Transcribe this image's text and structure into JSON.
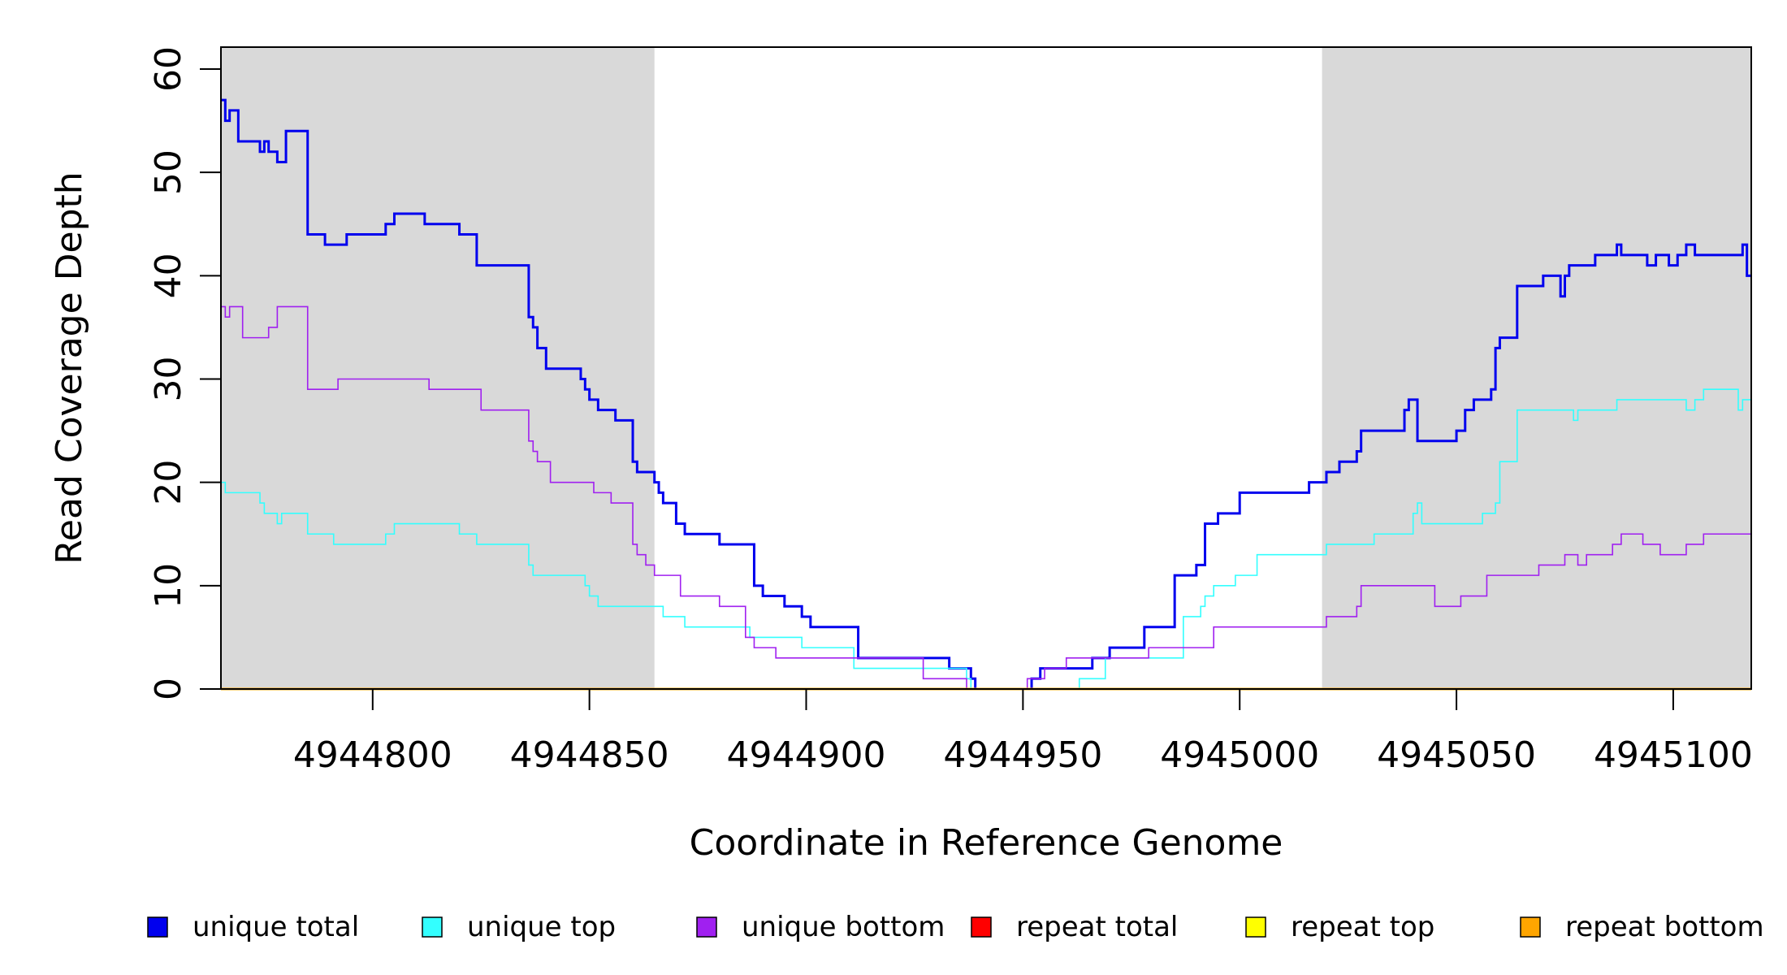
{
  "chart_data": {
    "type": "line",
    "xlabel": "Coordinate in Reference Genome",
    "ylabel": "Read Coverage Depth",
    "xlim": [
      4944765,
      4945118
    ],
    "ylim": [
      0,
      62
    ],
    "x_ticks": [
      4944800,
      4944850,
      4944900,
      4944950,
      4945000,
      4945050,
      4945100
    ],
    "x_tick_labels": [
      "4944800",
      "4944850",
      "4944900",
      "4944950",
      "4945000",
      "4945050",
      "4945100"
    ],
    "y_ticks": [
      0,
      10,
      20,
      30,
      40,
      50,
      60
    ],
    "y_tick_labels": [
      "0",
      "10",
      "20",
      "30",
      "40",
      "50",
      "60"
    ],
    "shaded_regions": [
      [
        4944765,
        4944865
      ],
      [
        4945019,
        4945118
      ]
    ],
    "shade_color": "#d9d9d9",
    "legend_position": "bottom",
    "series": [
      {
        "name": "unique total",
        "color": "#0000ee",
        "width": 3,
        "x": [
          4944765,
          4944766,
          4944767,
          4944769,
          4944769,
          4944771,
          4944774,
          4944774,
          4944775,
          4944776,
          4944778,
          4944780,
          4944783,
          4944785,
          4944788,
          4944789,
          4944794,
          4944798,
          4944803,
          4944804,
          4944805,
          4944806,
          4944807,
          4944812,
          4944817,
          4944820,
          4944824,
          4944828,
          4944832,
          4944836,
          4944837,
          4944838,
          4944840,
          4944844,
          4944848,
          4944849,
          4944850,
          4944852,
          4944854,
          4944856,
          4944860,
          4944861,
          4944862,
          4944865,
          4944866,
          4944867,
          4944870,
          4944872,
          4944875,
          4944880,
          4944887,
          4944888,
          4944890,
          4944895,
          4944899,
          4944901,
          4944911,
          4944912,
          4944921,
          4944928,
          4944933,
          4944938,
          4944939,
          4944944,
          4944951,
          4944952,
          4944954,
          4944960,
          4944966,
          4944970,
          4944978,
          4944985,
          4944988,
          4944990,
          4944992,
          4944995,
          4945000,
          4945005,
          4945010,
          4945013,
          4945016,
          4945020,
          4945023,
          4945027,
          4945028,
          4945035,
          4945038,
          4945039,
          4945041,
          4945043,
          4945050,
          4945052,
          4945054,
          4945056,
          4945058,
          4945059,
          4945060,
          4945062,
          4945064,
          4945068,
          4945070,
          4945074,
          4945075,
          4945076,
          4945078,
          4945082,
          4945087,
          4945087,
          4945088,
          4945091,
          4945094,
          4945096,
          4945096,
          4945099,
          4945101,
          4945103,
          4945105,
          4945113,
          4945116,
          4945117,
          4945118
        ],
        "y": [
          57,
          55,
          56,
          56,
          53,
          53,
          53,
          52,
          53,
          52,
          51,
          54,
          54,
          44,
          44,
          43,
          44,
          44,
          45,
          45,
          46,
          46,
          46,
          45,
          45,
          44,
          41,
          41,
          41,
          36,
          35,
          33,
          31,
          31,
          30,
          29,
          28,
          27,
          27,
          26,
          22,
          21,
          21,
          20,
          19,
          18,
          16,
          15,
          15,
          14,
          14,
          10,
          9,
          8,
          7,
          6,
          6,
          3,
          3,
          3,
          2,
          1,
          0,
          0,
          0,
          1,
          2,
          2,
          3,
          4,
          6,
          11,
          11,
          12,
          16,
          17,
          19,
          19,
          19,
          19,
          20,
          21,
          22,
          23,
          25,
          25,
          27,
          28,
          24,
          24,
          25,
          27,
          28,
          28,
          29,
          33,
          34,
          34,
          39,
          39,
          40,
          38,
          40,
          41,
          41,
          42,
          42,
          43,
          42,
          42,
          41,
          41,
          42,
          41,
          42,
          43,
          42,
          42,
          43,
          40,
          40
        ]
      },
      {
        "name": "unique top",
        "color": "#33ffff",
        "width": 1.6,
        "x": [
          4944765,
          4944766,
          4944774,
          4944775,
          4944776,
          4944778,
          4944778,
          4944779,
          4944785,
          4944791,
          4944803,
          4944804,
          4944805,
          4944807,
          4944820,
          4944824,
          4944836,
          4944837,
          4944839,
          4944848,
          4944849,
          4944850,
          4944852,
          4944865,
          4944867,
          4944872,
          4944877,
          4944887,
          4944896,
          4944899,
          4944900,
          4944911,
          4944915,
          4944916,
          4944933,
          4944937,
          4944938,
          4944951,
          4944963,
          4944968,
          4944969,
          4944979,
          4944980,
          4944987,
          4944990,
          4944991,
          4944992,
          4944994,
          4944999,
          4945004,
          4945014,
          4945020,
          4945031,
          4945037,
          4945040,
          4945041,
          4945042,
          4945051,
          4945056,
          4945059,
          4945060,
          4945064,
          4945069,
          4945077,
          4945078,
          4945086,
          4945087,
          4945101,
          4945103,
          4945105,
          4945107,
          4945115,
          4945116,
          4945118
        ],
        "y": [
          20,
          19,
          18,
          17,
          17,
          16,
          16,
          17,
          15,
          14,
          15,
          15,
          16,
          16,
          15,
          14,
          12,
          11,
          11,
          11,
          10,
          9,
          8,
          8,
          7,
          6,
          6,
          5,
          5,
          4,
          4,
          2,
          2,
          2,
          2,
          1,
          0,
          0,
          1,
          1,
          3,
          3,
          3,
          7,
          7,
          8,
          9,
          10,
          11,
          13,
          13,
          14,
          15,
          15,
          17,
          18,
          16,
          16,
          17,
          18,
          22,
          27,
          27,
          26,
          27,
          27,
          28,
          28,
          27,
          28,
          29,
          27,
          28,
          25
        ]
      },
      {
        "name": "unique bottom",
        "color": "#a020f0",
        "width": 1.6,
        "x": [
          4944765,
          4944766,
          4944767,
          4944769,
          4944770,
          4944776,
          4944778,
          4944780,
          4944785,
          4944792,
          4944813,
          4944825,
          4944836,
          4944837,
          4944838,
          4944839,
          4944841,
          4944845,
          4944851,
          4944855,
          4944860,
          4944861,
          4944862,
          4944863,
          4944865,
          4944871,
          4944875,
          4944880,
          4944886,
          4944888,
          4944893,
          4944911,
          4944927,
          4944937,
          4944951,
          4944955,
          4944960,
          4944975,
          4944979,
          4944992,
          4944994,
          4944999,
          4945013,
          4945020,
          4945027,
          4945028,
          4945042,
          4945045,
          4945050,
          4945051,
          4945053,
          4945057,
          4945062,
          4945065,
          4945069,
          4945071,
          4945074,
          4945075,
          4945078,
          4945080,
          4945084,
          4945086,
          4945087,
          4945088,
          4945093,
          4945097,
          4945103,
          4945105,
          4945107,
          4945118
        ],
        "y": [
          37,
          36,
          37,
          37,
          34,
          35,
          37,
          37,
          29,
          30,
          29,
          27,
          24,
          23,
          22,
          22,
          20,
          20,
          19,
          18,
          14,
          13,
          13,
          12,
          11,
          9,
          9,
          8,
          5,
          4,
          3,
          3,
          1,
          0,
          1,
          2,
          3,
          3,
          4,
          4,
          6,
          6,
          6,
          7,
          8,
          10,
          10,
          8,
          8,
          9,
          9,
          11,
          11,
          11,
          12,
          12,
          12,
          13,
          12,
          13,
          13,
          14,
          14,
          15,
          14,
          13,
          14,
          14,
          15,
          15
        ]
      },
      {
        "name": "repeat total",
        "color": "#ff0000",
        "width": 2,
        "x": [
          4944765,
          4945118
        ],
        "y": [
          0,
          0
        ]
      },
      {
        "name": "repeat top",
        "color": "#ffff00",
        "width": 2,
        "x": [
          4944765,
          4945118
        ],
        "y": [
          0,
          0
        ]
      },
      {
        "name": "repeat bottom",
        "color": "#ffa500",
        "width": 3,
        "x": [
          4944765,
          4945118
        ],
        "y": [
          0,
          0
        ]
      }
    ]
  },
  "legend": {
    "items": [
      {
        "label": "unique total",
        "color": "#0000ee"
      },
      {
        "label": "unique top",
        "color": "#33ffff"
      },
      {
        "label": "unique bottom",
        "color": "#a020f0"
      },
      {
        "label": "repeat total",
        "color": "#ff0000"
      },
      {
        "label": "repeat top",
        "color": "#ffff00"
      },
      {
        "label": "repeat bottom",
        "color": "#ffa500"
      }
    ]
  }
}
